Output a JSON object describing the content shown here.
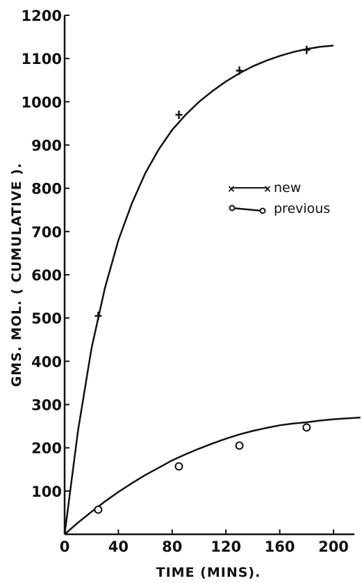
{
  "chart_data": {
    "type": "line",
    "title": "",
    "xlabel": "TIME (MINS).",
    "ylabel": "GMS. MOL. ( CUMULATIVE ).",
    "xlim": [
      0,
      220
    ],
    "ylim": [
      0,
      1200
    ],
    "x_ticks": [
      "0",
      "40",
      "80",
      "120",
      "160",
      "200"
    ],
    "y_ticks": [
      "100",
      "200",
      "300",
      "400",
      "500",
      "600",
      "700",
      "800",
      "900",
      "1000",
      "1100",
      "1200"
    ],
    "grid": false,
    "legend_position": "center-right",
    "series": [
      {
        "name": "new",
        "marker": "x",
        "points": [
          [
            25,
            505
          ],
          [
            85,
            970
          ],
          [
            130,
            1072
          ],
          [
            180,
            1120
          ]
        ],
        "curve": [
          [
            0,
            0
          ],
          [
            10,
            240
          ],
          [
            20,
            430
          ],
          [
            30,
            570
          ],
          [
            40,
            680
          ],
          [
            50,
            765
          ],
          [
            60,
            835
          ],
          [
            70,
            890
          ],
          [
            80,
            935
          ],
          [
            90,
            970
          ],
          [
            100,
            1000
          ],
          [
            110,
            1025
          ],
          [
            120,
            1047
          ],
          [
            130,
            1066
          ],
          [
            140,
            1082
          ],
          [
            150,
            1095
          ],
          [
            160,
            1106
          ],
          [
            170,
            1115
          ],
          [
            180,
            1122
          ],
          [
            190,
            1127
          ],
          [
            200,
            1130
          ]
        ]
      },
      {
        "name": "previous",
        "marker": "o",
        "points": [
          [
            25,
            57
          ],
          [
            85,
            157
          ],
          [
            130,
            205
          ],
          [
            180,
            247
          ]
        ],
        "curve": [
          [
            0,
            0
          ],
          [
            10,
            27
          ],
          [
            20,
            52
          ],
          [
            30,
            76
          ],
          [
            40,
            98
          ],
          [
            50,
            118
          ],
          [
            60,
            137
          ],
          [
            70,
            154
          ],
          [
            80,
            171
          ],
          [
            90,
            185
          ],
          [
            100,
            198
          ],
          [
            110,
            210
          ],
          [
            120,
            221
          ],
          [
            130,
            231
          ],
          [
            140,
            239
          ],
          [
            150,
            246
          ],
          [
            160,
            252
          ],
          [
            170,
            256
          ],
          [
            180,
            259
          ],
          [
            190,
            263
          ],
          [
            200,
            266
          ],
          [
            210,
            268
          ],
          [
            220,
            270
          ]
        ]
      }
    ],
    "colors": {
      "ink": "#111111"
    }
  }
}
